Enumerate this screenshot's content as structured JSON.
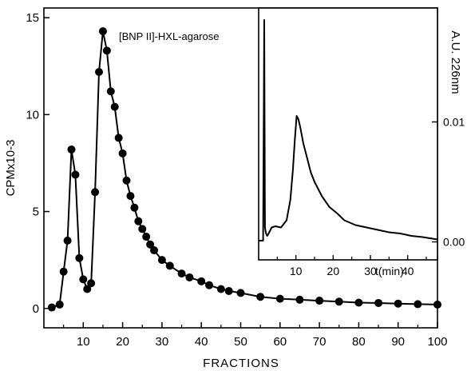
{
  "chart_data": [
    {
      "type": "scatter",
      "xlabel": "FRACTIONS",
      "ylabel": "CPMx10-3",
      "xlim": [
        0,
        100
      ],
      "ylim": [
        -1,
        15.5
      ],
      "xticks": [
        10,
        20,
        30,
        40,
        50,
        60,
        70,
        80,
        90,
        100
      ],
      "yticks": [
        0,
        5,
        10,
        15
      ],
      "annotation": "[BNP II]-HXL-agarose",
      "series": [
        {
          "x": [
            2,
            4,
            5,
            6,
            7,
            8,
            9,
            10,
            11,
            12,
            13,
            14,
            15,
            16,
            17,
            18,
            19,
            20,
            21,
            22,
            23,
            24,
            25,
            26,
            27,
            28,
            30,
            32,
            35,
            37,
            40,
            42,
            45,
            47,
            50,
            55,
            60,
            65,
            70,
            75,
            80,
            85,
            90,
            95,
            100
          ],
          "y": [
            0.05,
            0.2,
            1.9,
            3.5,
            8.2,
            6.9,
            2.6,
            1.5,
            1.0,
            1.3,
            6.0,
            12.2,
            14.3,
            13.3,
            11.2,
            10.4,
            8.8,
            8.0,
            6.6,
            5.8,
            5.2,
            4.5,
            4.1,
            3.7,
            3.3,
            3.0,
            2.5,
            2.2,
            1.8,
            1.6,
            1.4,
            1.2,
            1.0,
            0.9,
            0.8,
            0.6,
            0.5,
            0.45,
            0.4,
            0.35,
            0.3,
            0.28,
            0.25,
            0.22,
            0.2
          ]
        }
      ]
    },
    {
      "type": "line",
      "xlabel": "t(min)",
      "ylabel": "A.U. 226nm",
      "xlim": [
        0,
        48
      ],
      "ylim": [
        -0.0015,
        0.0195
      ],
      "xticks": [
        10,
        20,
        30,
        40
      ],
      "yticks": [
        0.0,
        0.01
      ],
      "ytick_labels": [
        "0.00",
        "0.01"
      ],
      "series": [
        {
          "x": [
            0,
            1.2,
            1.5,
            1.7,
            1.9,
            2.1,
            2.3,
            2.5,
            3.5,
            4.5,
            6,
            7.5,
            8.5,
            9.2,
            9.7,
            10.2,
            10.7,
            11.2,
            12,
            13,
            14,
            15,
            17,
            19,
            21,
            23,
            26,
            29,
            32,
            35,
            38,
            41,
            44,
            46,
            48
          ],
          "y": [
            0.0001,
            0.0001,
            0.0185,
            0.0012,
            0.0008,
            0.0006,
            0.0005,
            0.0006,
            0.0012,
            0.0013,
            0.0012,
            0.0018,
            0.0035,
            0.006,
            0.0085,
            0.0105,
            0.0102,
            0.0095,
            0.0082,
            0.007,
            0.0058,
            0.005,
            0.0038,
            0.0029,
            0.0024,
            0.0018,
            0.0014,
            0.0012,
            0.001,
            0.0008,
            0.0007,
            0.0005,
            0.0004,
            0.0003,
            0.0002
          ]
        }
      ]
    }
  ]
}
